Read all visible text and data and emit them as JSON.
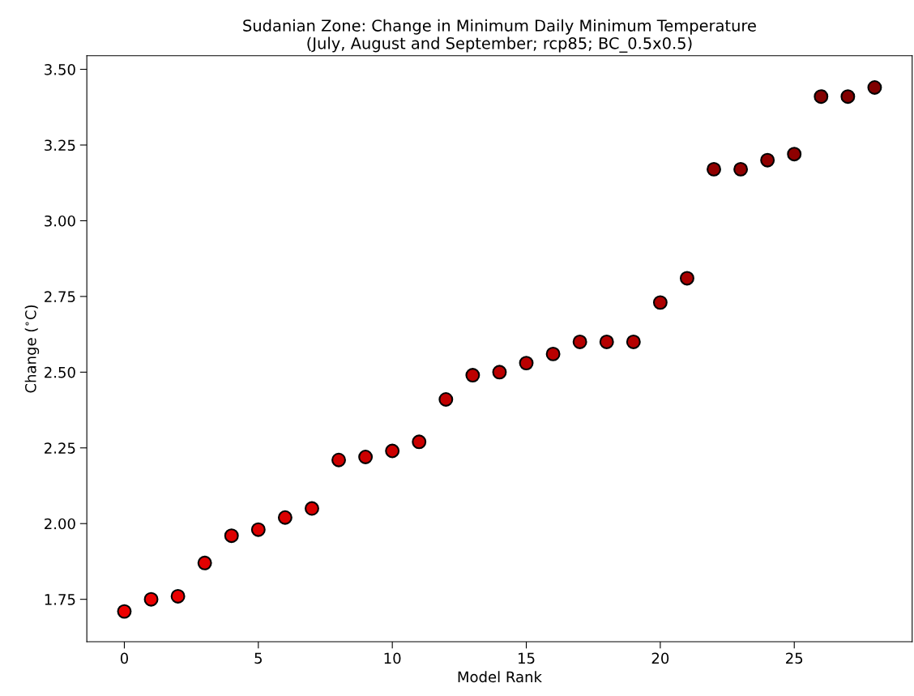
{
  "chart_data": {
    "type": "scatter",
    "title": "Sudanian Zone: Change in Minimum Daily Minimum Temperature\n(July, August and September; rcp85; BC_0.5x0.5)",
    "xlabel": "Model Rank",
    "ylabel": "Change ($^{∘}$C)",
    "x": [
      0,
      1,
      2,
      3,
      4,
      5,
      6,
      7,
      8,
      9,
      10,
      11,
      12,
      13,
      14,
      15,
      16,
      17,
      18,
      19,
      20,
      21,
      22,
      23,
      24,
      25,
      26,
      27,
      28
    ],
    "values": [
      1.71,
      1.75,
      1.76,
      1.87,
      1.96,
      1.98,
      2.02,
      2.05,
      2.21,
      2.22,
      2.24,
      2.27,
      2.41,
      2.49,
      2.5,
      2.53,
      2.56,
      2.6,
      2.6,
      2.6,
      2.73,
      2.81,
      3.17,
      3.17,
      3.2,
      3.22,
      3.41,
      3.41,
      3.44
    ],
    "colors": [
      "#ee0000",
      "#eb0000",
      "#ea0000",
      "#e30000",
      "#de0000",
      "#dc0000",
      "#da0000",
      "#d80000",
      "#ce0000",
      "#cd0000",
      "#cc0000",
      "#ca0000",
      "#c10000",
      "#bc0000",
      "#bb0000",
      "#ba0000",
      "#b80000",
      "#b50000",
      "#b50000",
      "#b50000",
      "#ad0000",
      "#a80000",
      "#910000",
      "#910000",
      "#8f0000",
      "#8e0000",
      "#820000",
      "#820000",
      "#800000"
    ],
    "marker": "circle",
    "xlim": [
      -1.4,
      29.4
    ],
    "ylim": [
      1.61,
      3.545
    ],
    "xticks": [
      0,
      5,
      10,
      15,
      20,
      25
    ],
    "yticks": [
      {
        "value": 1.75,
        "label": "1.75"
      },
      {
        "value": 2.0,
        "label": "2.00"
      },
      {
        "value": 2.25,
        "label": "2.25"
      },
      {
        "value": 2.5,
        "label": "2.50"
      },
      {
        "value": 2.75,
        "label": "2.75"
      },
      {
        "value": 3.0,
        "label": "3.00"
      },
      {
        "value": 3.25,
        "label": "3.25"
      },
      {
        "value": 3.5,
        "label": "3.50"
      }
    ],
    "grid": false,
    "legend": false
  }
}
